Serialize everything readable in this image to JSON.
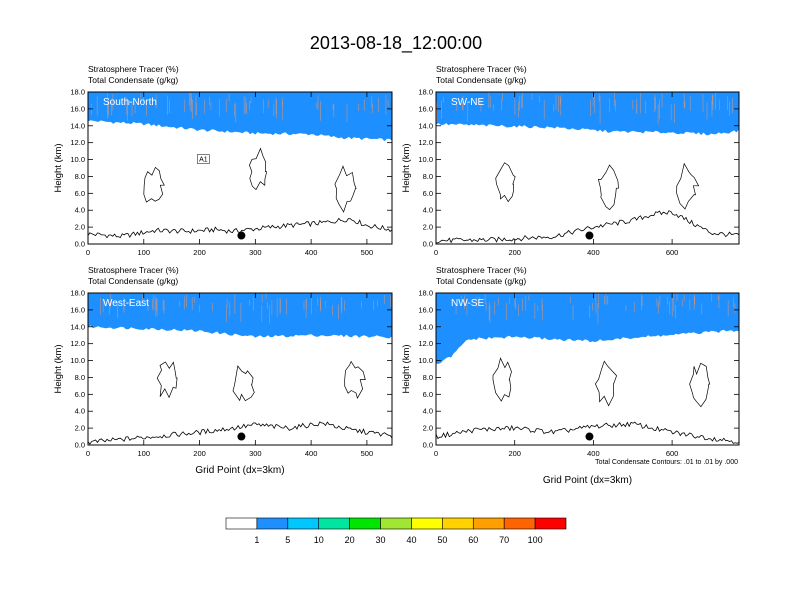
{
  "figure": {
    "title": "2013-08-18_12:00:00",
    "xlabel": "Grid Point (dx=3km)",
    "ylabel": "Height (km)",
    "contour_note": "Total Condensate Contours: .01 to .01 by .000"
  },
  "colorbar": {
    "levels": [
      "1",
      "5",
      "10",
      "20",
      "30",
      "40",
      "50",
      "60",
      "70",
      "100"
    ],
    "colors": [
      "#ffffff",
      "#1e8fff",
      "#00c8ff",
      "#00e6a0",
      "#00e600",
      "#a0e632",
      "#ffff00",
      "#ffd200",
      "#ffa000",
      "#ff6400",
      "#ff0000"
    ]
  },
  "chart_data": [
    {
      "type": "contour-section",
      "panel_label": "South-North",
      "subtitle_line1": "Stratosphere Tracer   (%)",
      "subtitle_line2": "Total Condensate   (g/kg)",
      "xlim": [
        0,
        545
      ],
      "ylim": [
        0,
        18
      ],
      "xticks": [
        0,
        100,
        200,
        300,
        400,
        500
      ],
      "yticks": [
        "0.0",
        "2.0",
        "4.0",
        "6.0",
        "8.0",
        "10.0",
        "12.0",
        "14.0",
        "16.0",
        "18.0"
      ],
      "marker_x": 275,
      "tracer_base_km": [
        [
          0,
          14.6
        ],
        [
          100,
          14.2
        ],
        [
          200,
          13.5
        ],
        [
          300,
          13.1
        ],
        [
          400,
          13.0
        ],
        [
          450,
          12.6
        ],
        [
          545,
          12.3
        ]
      ],
      "terrain_km": [
        [
          0,
          1.2
        ],
        [
          60,
          0.9
        ],
        [
          120,
          1.6
        ],
        [
          180,
          1.5
        ],
        [
          230,
          1.7
        ],
        [
          260,
          1.5
        ],
        [
          300,
          1.8
        ],
        [
          360,
          2.2
        ],
        [
          420,
          2.5
        ],
        [
          470,
          3.0
        ],
        [
          500,
          2.2
        ],
        [
          545,
          1.7
        ]
      ],
      "contour_label": "A1"
    },
    {
      "type": "contour-section",
      "panel_label": "SW-NE",
      "subtitle_line1": "Stratosphere Tracer   (%)",
      "subtitle_line2": "Total Condensate   (g/kg)",
      "xlim": [
        0,
        770
      ],
      "ylim": [
        0,
        18
      ],
      "xticks": [
        0,
        200,
        400,
        600
      ],
      "yticks": [
        "0.0",
        "2.0",
        "4.0",
        "6.0",
        "8.0",
        "10.0",
        "12.0",
        "14.0",
        "16.0",
        "18.0"
      ],
      "marker_x": 390,
      "tracer_base_km": [
        [
          0,
          14.2
        ],
        [
          150,
          14.0
        ],
        [
          300,
          13.8
        ],
        [
          450,
          13.3
        ],
        [
          600,
          13.2
        ],
        [
          700,
          13.0
        ],
        [
          770,
          13.4
        ]
      ],
      "terrain_km": [
        [
          0,
          0.4
        ],
        [
          150,
          0.5
        ],
        [
          300,
          0.9
        ],
        [
          400,
          2.0
        ],
        [
          500,
          2.8
        ],
        [
          550,
          3.5
        ],
        [
          600,
          3.8
        ],
        [
          650,
          2.5
        ],
        [
          700,
          1.3
        ],
        [
          770,
          1.0
        ]
      ]
    },
    {
      "type": "contour-section",
      "panel_label": "West-East",
      "subtitle_line1": "Stratosphere Tracer   (%)",
      "subtitle_line2": "Total Condensate   (g/kg)",
      "xlim": [
        0,
        545
      ],
      "ylim": [
        0,
        18
      ],
      "xticks": [
        0,
        100,
        200,
        300,
        400,
        500
      ],
      "yticks": [
        "0.0",
        "2.0",
        "4.0",
        "6.0",
        "8.0",
        "10.0",
        "12.0",
        "14.0",
        "16.0",
        "18.0"
      ],
      "marker_x": 275,
      "tracer_base_km": [
        [
          0,
          14.0
        ],
        [
          100,
          13.8
        ],
        [
          200,
          13.5
        ],
        [
          300,
          12.8
        ],
        [
          400,
          13.0
        ],
        [
          545,
          12.8
        ]
      ],
      "terrain_km": [
        [
          0,
          0.3
        ],
        [
          100,
          0.9
        ],
        [
          200,
          1.5
        ],
        [
          260,
          2.0
        ],
        [
          300,
          2.4
        ],
        [
          360,
          2.0
        ],
        [
          420,
          2.6
        ],
        [
          470,
          1.8
        ],
        [
          545,
          1.1
        ]
      ]
    },
    {
      "type": "contour-section",
      "panel_label": "NW-SE",
      "subtitle_line1": "Stratosphere Tracer   (%)",
      "subtitle_line2": "Total Condensate   (g/kg)",
      "xlim": [
        0,
        770
      ],
      "ylim": [
        0,
        18
      ],
      "xticks": [
        0,
        200,
        400,
        600
      ],
      "yticks": [
        "0.0",
        "2.0",
        "4.0",
        "6.0",
        "8.0",
        "10.0",
        "12.0",
        "14.0",
        "16.0",
        "18.0"
      ],
      "marker_x": 390,
      "tracer_base_km": [
        [
          0,
          9.5
        ],
        [
          40,
          10.5
        ],
        [
          80,
          12.5
        ],
        [
          200,
          12.8
        ],
        [
          350,
          12.4
        ],
        [
          400,
          12.3
        ],
        [
          500,
          12.7
        ],
        [
          650,
          13.2
        ],
        [
          770,
          13.6
        ]
      ],
      "terrain_km": [
        [
          0,
          1.0
        ],
        [
          100,
          1.8
        ],
        [
          200,
          2.0
        ],
        [
          300,
          1.5
        ],
        [
          400,
          2.2
        ],
        [
          500,
          2.5
        ],
        [
          600,
          1.5
        ],
        [
          700,
          0.8
        ],
        [
          770,
          0.4
        ]
      ]
    }
  ]
}
